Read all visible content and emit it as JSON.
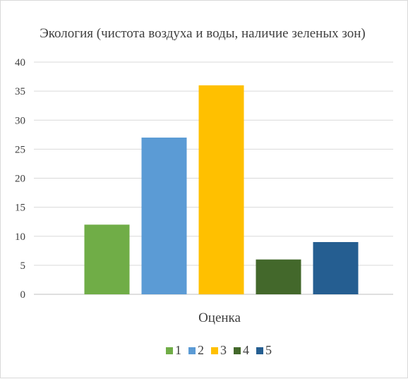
{
  "chart_data": {
    "type": "bar",
    "title": "Экология (чистота воздуха и воды, наличие зеленых зон)",
    "xlabel": "Оценка",
    "ylabel": "",
    "ylim": [
      0,
      40
    ],
    "y_ticks": [
      0,
      5,
      10,
      15,
      20,
      25,
      30,
      35,
      40
    ],
    "grid": true,
    "legend_position": "bottom",
    "series": [
      {
        "name": "1",
        "value": 12,
        "color": "#70ad47"
      },
      {
        "name": "2",
        "value": 27,
        "color": "#5b9bd5"
      },
      {
        "name": "3",
        "value": 36,
        "color": "#ffc000"
      },
      {
        "name": "4",
        "value": 6,
        "color": "#43682b"
      },
      {
        "name": "5",
        "value": 9,
        "color": "#255e91"
      }
    ]
  }
}
